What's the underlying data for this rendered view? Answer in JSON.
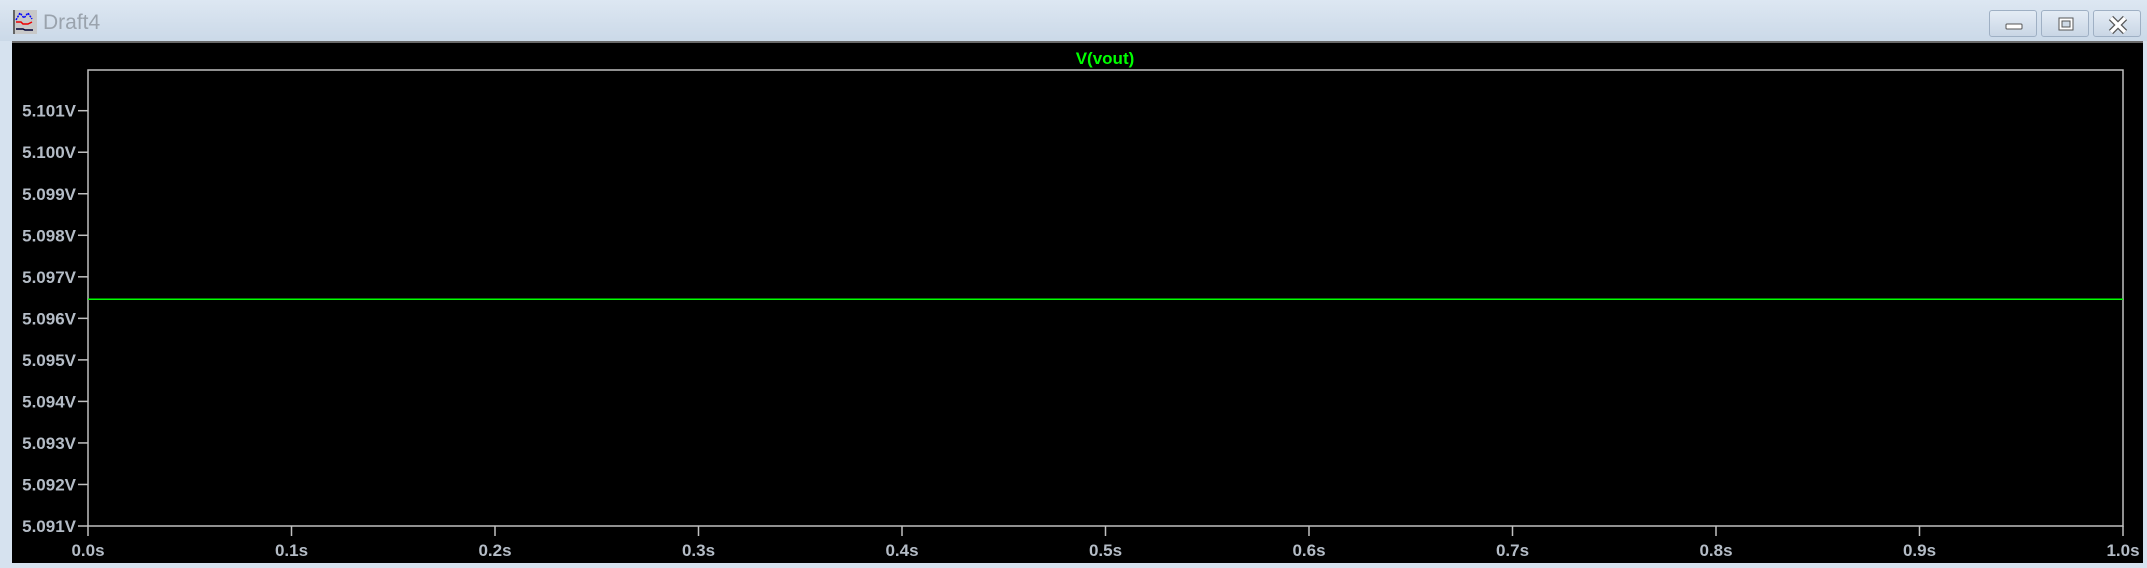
{
  "window": {
    "title": "Draft4",
    "icon": "waveform-viewer-icon",
    "buttons": {
      "minimize": "minimize-icon",
      "maximize": "maximize-icon",
      "close": "close-icon"
    }
  },
  "colors": {
    "background": "#000000",
    "axis": "#c0c0c0",
    "trace": "#00ff00",
    "tick_label": "#b4bcc6"
  },
  "chart_data": {
    "type": "line",
    "title": "",
    "series": [
      {
        "name": "V(vout)",
        "x": [
          0.0,
          1.0
        ],
        "y": [
          5.09646,
          5.09646
        ],
        "color": "#00ff00"
      }
    ],
    "xlim": [
      0.0,
      1.0
    ],
    "ylim": [
      5.091,
      5.10198
    ],
    "x_ticks": [
      0.0,
      0.1,
      0.2,
      0.3,
      0.4,
      0.5,
      0.6,
      0.7,
      0.8,
      0.9,
      1.0
    ],
    "x_tick_labels": [
      "0.0s",
      "0.1s",
      "0.2s",
      "0.3s",
      "0.4s",
      "0.5s",
      "0.6s",
      "0.7s",
      "0.8s",
      "0.9s",
      "1.0s"
    ],
    "y_ticks": [
      5.091,
      5.092,
      5.093,
      5.094,
      5.095,
      5.096,
      5.097,
      5.098,
      5.099,
      5.1,
      5.101
    ],
    "y_tick_labels": [
      "5.091V",
      "5.092V",
      "5.093V",
      "5.094V",
      "5.095V",
      "5.096V",
      "5.097V",
      "5.098V",
      "5.099V",
      "5.100V",
      "5.101V"
    ],
    "grid": false,
    "legend": "top-center"
  }
}
